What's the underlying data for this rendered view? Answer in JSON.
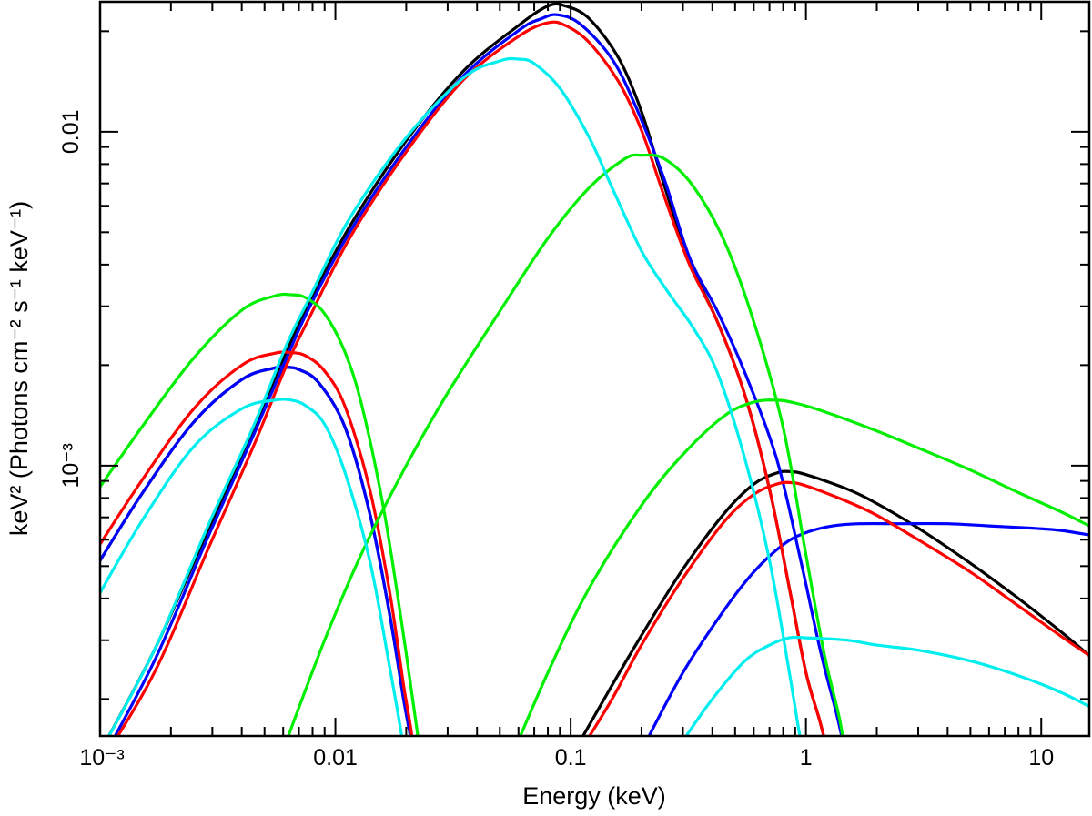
{
  "chart_data": {
    "type": "line",
    "title": "",
    "xlabel": "Energy (keV)",
    "ylabel": "keV² (Photons cm⁻² s⁻¹ keV⁻¹)",
    "x_scale": "log",
    "y_scale": "log",
    "xlim": [
      0.001,
      16
    ],
    "ylim": [
      0.000155,
      0.0245
    ],
    "grid": false,
    "legend": "none",
    "x_tick_labels": [
      {
        "value": 0.001,
        "label": "10⁻³"
      },
      {
        "value": 0.01,
        "label": "0.01"
      },
      {
        "value": 0.1,
        "label": "0.1"
      },
      {
        "value": 1,
        "label": "1"
      },
      {
        "value": 10,
        "label": "10"
      }
    ],
    "y_tick_labels": [
      {
        "value": 0.001,
        "label": "10⁻³"
      },
      {
        "value": 0.01,
        "label": "0.01"
      }
    ],
    "series": [
      {
        "color": "#000000",
        "x": [
          0.00095,
          0.0017,
          0.0029,
          0.0045,
          0.0062,
          0.0078,
          0.0115,
          0.02,
          0.035,
          0.06,
          0.08,
          0.095,
          0.12,
          0.16,
          0.2,
          0.25,
          0.32,
          0.42,
          0.55,
          0.7,
          0.85,
          1.0,
          1.15,
          1.3
        ],
        "y": [
          0.00013,
          0.00028,
          0.00065,
          0.0013,
          0.0022,
          0.0031,
          0.0052,
          0.0094,
          0.0152,
          0.0208,
          0.0238,
          0.0238,
          0.0218,
          0.0166,
          0.0115,
          0.0069,
          0.0041,
          0.0027,
          0.00163,
          0.00085,
          0.00043,
          0.00024,
          0.00017,
          0.00012
        ]
      },
      {
        "color": "#000000",
        "x": [
          0.00095,
          0.0015,
          0.0025,
          0.004,
          0.0055,
          0.0062,
          0.007,
          0.0085,
          0.011,
          0.014,
          0.017,
          0.0195,
          0.021,
          0.022
        ],
        "y": [
          0.00049,
          0.00082,
          0.00135,
          0.00181,
          0.00196,
          0.00197,
          0.00194,
          0.00177,
          0.0013,
          0.00072,
          0.00036,
          0.0002,
          0.00015,
          0.00012
        ]
      },
      {
        "color": "#000000",
        "x": [
          0.11,
          0.15,
          0.2,
          0.3,
          0.45,
          0.6,
          0.75,
          0.85,
          1.0,
          1.5,
          2.0,
          3.0,
          5.0,
          8.0,
          12.0,
          16.0
        ],
        "y": [
          0.00015,
          0.00022,
          0.00031,
          0.00049,
          0.00072,
          0.00088,
          0.00095,
          0.00096,
          0.00094,
          0.00085,
          0.00077,
          0.00065,
          0.00051,
          0.0004,
          0.00032,
          0.00027
        ]
      },
      {
        "color": "#0000ff",
        "x": [
          0.00095,
          0.0017,
          0.0029,
          0.0045,
          0.0062,
          0.0078,
          0.0115,
          0.02,
          0.035,
          0.06,
          0.075,
          0.088,
          0.11,
          0.15,
          0.19,
          0.25,
          0.32,
          0.42,
          0.55,
          0.75,
          0.95,
          1.15,
          1.35,
          1.5
        ],
        "y": [
          0.00012,
          0.00026,
          0.00062,
          0.00124,
          0.0021,
          0.003,
          0.005,
          0.009,
          0.0147,
          0.0201,
          0.0218,
          0.0224,
          0.021,
          0.0165,
          0.0118,
          0.0072,
          0.0042,
          0.0029,
          0.0019,
          0.00105,
          0.00052,
          0.00028,
          0.00018,
          0.00013
        ]
      },
      {
        "color": "#0000ff",
        "x": [
          0.00095,
          0.0015,
          0.0025,
          0.004,
          0.0055,
          0.0062,
          0.007,
          0.0085,
          0.011,
          0.014,
          0.017,
          0.0195,
          0.021,
          0.022
        ],
        "y": [
          0.00049,
          0.00082,
          0.00135,
          0.00181,
          0.00196,
          0.00197,
          0.00194,
          0.00177,
          0.0013,
          0.00072,
          0.00036,
          0.0002,
          0.00015,
          0.00012
        ]
      },
      {
        "color": "#0000ff",
        "x": [
          0.2,
          0.3,
          0.45,
          0.6,
          0.8,
          1.0,
          1.3,
          1.7,
          2.5,
          4.0,
          6.0,
          9.0,
          12.0,
          16.0
        ],
        "y": [
          0.00014,
          0.00024,
          0.00037,
          0.00048,
          0.00058,
          0.00063,
          0.00066,
          0.00067,
          0.00067,
          0.00067,
          0.00066,
          0.00065,
          0.00064,
          0.00062
        ]
      },
      {
        "color": "#ff0000",
        "x": [
          0.00095,
          0.0017,
          0.0029,
          0.0045,
          0.0062,
          0.0078,
          0.0115,
          0.02,
          0.035,
          0.06,
          0.08,
          0.095,
          0.12,
          0.16,
          0.2,
          0.25,
          0.32,
          0.42,
          0.55,
          0.7,
          0.85,
          1.0,
          1.15,
          1.3
        ],
        "y": [
          0.00012,
          0.00024,
          0.00057,
          0.00115,
          0.002,
          0.0028,
          0.0048,
          0.0087,
          0.0143,
          0.0193,
          0.0212,
          0.0208,
          0.0185,
          0.0141,
          0.0101,
          0.0064,
          0.004,
          0.0027,
          0.00163,
          0.00085,
          0.00043,
          0.00024,
          0.00017,
          0.00012
        ]
      },
      {
        "color": "#ff0000",
        "x": [
          0.00095,
          0.0015,
          0.0025,
          0.004,
          0.0055,
          0.0065,
          0.0075,
          0.009,
          0.011,
          0.014,
          0.017,
          0.0195,
          0.021,
          0.022
        ],
        "y": [
          0.00055,
          0.0009,
          0.00148,
          0.002,
          0.00217,
          0.00218,
          0.00213,
          0.00192,
          0.0015,
          0.00085,
          0.00042,
          0.00022,
          0.00016,
          0.00012
        ]
      },
      {
        "color": "#ff0000",
        "x": [
          0.11,
          0.15,
          0.2,
          0.3,
          0.45,
          0.6,
          0.75,
          0.85,
          1.0,
          1.5,
          2.0,
          3.0,
          5.0,
          8.0,
          12.0,
          16.0
        ],
        "y": [
          0.00014,
          0.0002,
          0.00029,
          0.00046,
          0.00068,
          0.00082,
          0.00088,
          0.00089,
          0.00087,
          0.00078,
          0.00071,
          0.0006,
          0.00048,
          0.00038,
          0.00031,
          0.00027
        ]
      },
      {
        "color": "#00ee00",
        "x": [
          0.00095,
          0.0015,
          0.0025,
          0.004,
          0.0055,
          0.0065,
          0.0075,
          0.009,
          0.011,
          0.013,
          0.016,
          0.019,
          0.022,
          0.0235
        ],
        "y": [
          0.00082,
          0.0013,
          0.0021,
          0.00292,
          0.00322,
          0.00325,
          0.00318,
          0.00285,
          0.00218,
          0.0015,
          0.00075,
          0.00035,
          0.00017,
          0.00012
        ]
      },
      {
        "color": "#00ee00",
        "x": [
          0.0062,
          0.009,
          0.013,
          0.02,
          0.03,
          0.05,
          0.08,
          0.12,
          0.17,
          0.2,
          0.25,
          0.33,
          0.45,
          0.6,
          0.8,
          1.0,
          1.2,
          1.4,
          1.5
        ],
        "y": [
          0.00015,
          0.0003,
          0.00055,
          0.001,
          0.00165,
          0.0029,
          0.0048,
          0.0068,
          0.0083,
          0.0085,
          0.0083,
          0.0069,
          0.0047,
          0.0027,
          0.0013,
          0.00054,
          0.00027,
          0.00017,
          0.00012
        ]
      },
      {
        "color": "#00ee00",
        "x": [
          0.055,
          0.08,
          0.12,
          0.2,
          0.3,
          0.45,
          0.6,
          0.75,
          0.9,
          1.2,
          2.0,
          3.0,
          5.0,
          8.0,
          12.0,
          16.0
        ],
        "y": [
          0.00013,
          0.00024,
          0.00043,
          0.00076,
          0.00108,
          0.00141,
          0.00155,
          0.00157,
          0.00154,
          0.00145,
          0.00127,
          0.00113,
          0.00097,
          0.00083,
          0.00073,
          0.00066
        ]
      },
      {
        "color": "#00eeee",
        "x": [
          0.00095,
          0.0015,
          0.0025,
          0.004,
          0.0055,
          0.0065,
          0.0075,
          0.009,
          0.011,
          0.014,
          0.017,
          0.019,
          0.0205
        ],
        "y": [
          0.00039,
          0.00068,
          0.00114,
          0.00148,
          0.00157,
          0.00157,
          0.00151,
          0.00133,
          0.00095,
          0.00052,
          0.00025,
          0.00016,
          0.00011
        ]
      },
      {
        "color": "#00eeee",
        "x": [
          0.00095,
          0.0017,
          0.0029,
          0.0045,
          0.0062,
          0.0078,
          0.0115,
          0.02,
          0.035,
          0.05,
          0.06,
          0.07,
          0.09,
          0.12,
          0.15,
          0.2,
          0.26,
          0.33,
          0.42,
          0.55,
          0.7,
          0.85,
          0.95,
          1.05
        ],
        "y": [
          0.00013,
          0.00028,
          0.00067,
          0.00132,
          0.0023,
          0.0032,
          0.0055,
          0.0096,
          0.0145,
          0.0163,
          0.0165,
          0.016,
          0.0135,
          0.0096,
          0.0068,
          0.0044,
          0.0033,
          0.0026,
          0.0019,
          0.00105,
          0.00052,
          0.00024,
          0.00015,
          0.00011
        ]
      },
      {
        "color": "#00eeee",
        "x": [
          0.3,
          0.4,
          0.55,
          0.7,
          0.85,
          1.0,
          1.5,
          2.0,
          3.0,
          5.0,
          8.0,
          12.0,
          16.0
        ],
        "y": [
          0.00015,
          0.0002,
          0.00026,
          0.00029,
          0.000305,
          0.000305,
          0.0003,
          0.00029,
          0.00028,
          0.00026,
          0.000235,
          0.00021,
          0.00019
        ]
      }
    ]
  }
}
